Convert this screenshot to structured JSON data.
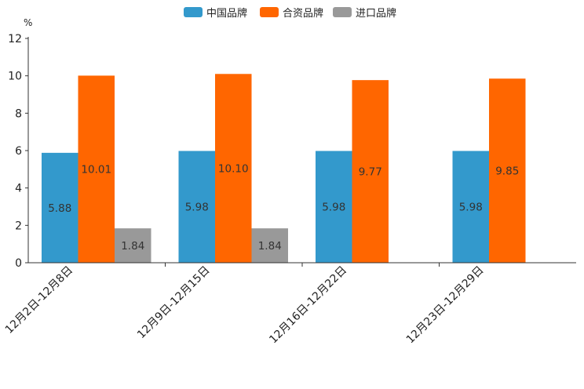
{
  "chart_data": {
    "type": "bar",
    "title": "",
    "ylabel": "%",
    "xlabel": "",
    "ylim": [
      0,
      12
    ],
    "yticks": [
      0,
      2,
      4,
      6,
      8,
      10,
      12
    ],
    "grid": false,
    "legend_position": "top-center",
    "categories": [
      "12月2日-12月8日",
      "12月9日-12月15日",
      "12月16日-12月22日",
      "12月23日-12月29日"
    ],
    "series": [
      {
        "name": "中国品牌",
        "color": "#3399cc",
        "values": [
          5.88,
          5.98,
          5.98,
          5.98
        ],
        "labels": [
          "5.88",
          "5.98",
          "5.98",
          "5.98"
        ]
      },
      {
        "name": "合资品牌",
        "color": "#ff6600",
        "values": [
          10.01,
          10.1,
          9.77,
          9.85
        ],
        "labels": [
          "10.01",
          "10.10",
          "9.77",
          "9.85"
        ]
      },
      {
        "name": "进口品牌",
        "color": "#999999",
        "values": [
          1.84,
          1.84,
          null,
          null
        ],
        "labels": [
          "1.84",
          "1.84",
          null,
          null
        ]
      }
    ]
  }
}
